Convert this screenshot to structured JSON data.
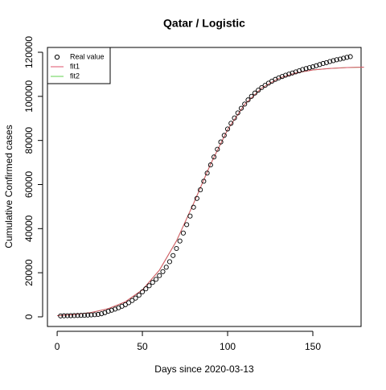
{
  "chart_data": {
    "type": "scatter",
    "title": "Qatar / Logistic",
    "x_label": "Days since 2020-03-13",
    "y_label": "Cumulative Confirmed cases",
    "xlim": [
      -5.7,
      178.3
    ],
    "ylim": [
      -4380,
      122190
    ],
    "xticks": [
      0,
      50,
      100,
      150
    ],
    "yticks": [
      0,
      20000,
      40000,
      60000,
      80000,
      100000,
      120000
    ],
    "legend": "top-left",
    "series": [
      {
        "name": "Real value",
        "mark": "points",
        "color": "#000000",
        "x": [
          2,
          4,
          6,
          8,
          10,
          12,
          14,
          16,
          18,
          20,
          22,
          24,
          26,
          28,
          30,
          32,
          34,
          36,
          38,
          40,
          42,
          44,
          46,
          48,
          50,
          52,
          54,
          56,
          58,
          60,
          62,
          64,
          66,
          68,
          70,
          72,
          74,
          76,
          78,
          80,
          82,
          84,
          86,
          88,
          90,
          92,
          94,
          96,
          98,
          100,
          102,
          104,
          106,
          108,
          110,
          112,
          114,
          116,
          118,
          120,
          122,
          124,
          126,
          128,
          130,
          132,
          134,
          136,
          138,
          140,
          142,
          144,
          146,
          148,
          150,
          152,
          154,
          156,
          158,
          160,
          162,
          164,
          166,
          168,
          170,
          172
        ],
        "values": [
          400,
          460,
          500,
          530,
          560,
          600,
          650,
          700,
          780,
          860,
          950,
          1100,
          1400,
          1900,
          2500,
          3000,
          3500,
          4100,
          4800,
          5500,
          6400,
          7400,
          8500,
          9800,
          11300,
          12700,
          14100,
          15600,
          17000,
          18700,
          20500,
          22500,
          25000,
          27800,
          31000,
          34400,
          38000,
          41800,
          45700,
          49700,
          53700,
          57600,
          61500,
          65200,
          68900,
          72500,
          76000,
          79300,
          82300,
          85200,
          87800,
          90200,
          92500,
          94600,
          96500,
          98400,
          100000,
          101500,
          102800,
          104000,
          105000,
          106000,
          106900,
          107700,
          108400,
          109000,
          109600,
          110100,
          110600,
          111100,
          111600,
          112200,
          112600,
          113000,
          113400,
          113900,
          114400,
          114900,
          115300,
          115800,
          116200,
          116600,
          116900,
          117300,
          117700,
          118000
        ]
      },
      {
        "name": "fit1",
        "mark": "line",
        "color": "#df536b",
        "x": [
          0,
          10,
          20,
          30,
          40,
          50,
          60,
          70,
          80,
          90,
          100,
          110,
          120,
          130,
          140,
          150,
          160,
          170,
          180
        ],
        "values": [
          557,
          1052,
          1972,
          3686,
          6804,
          12240,
          21180,
          34400,
          51350,
          69250,
          84900,
          96360,
          103780,
          108160,
          110620,
          111960,
          112680,
          113070,
          113270
        ]
      },
      {
        "name": "fit2",
        "mark": "line",
        "color": "#61d04f",
        "x": [
          0,
          10,
          20,
          30,
          40,
          50,
          60,
          70,
          80,
          90,
          100,
          110,
          120,
          130,
          140,
          150,
          160,
          170,
          180
        ],
        "values": [
          557,
          1052,
          1972,
          3686,
          6804,
          12240,
          21180,
          34400,
          51350,
          69250,
          84900,
          96360,
          103780,
          108160,
          110620,
          111960,
          112680,
          113070,
          113270
        ]
      }
    ]
  }
}
